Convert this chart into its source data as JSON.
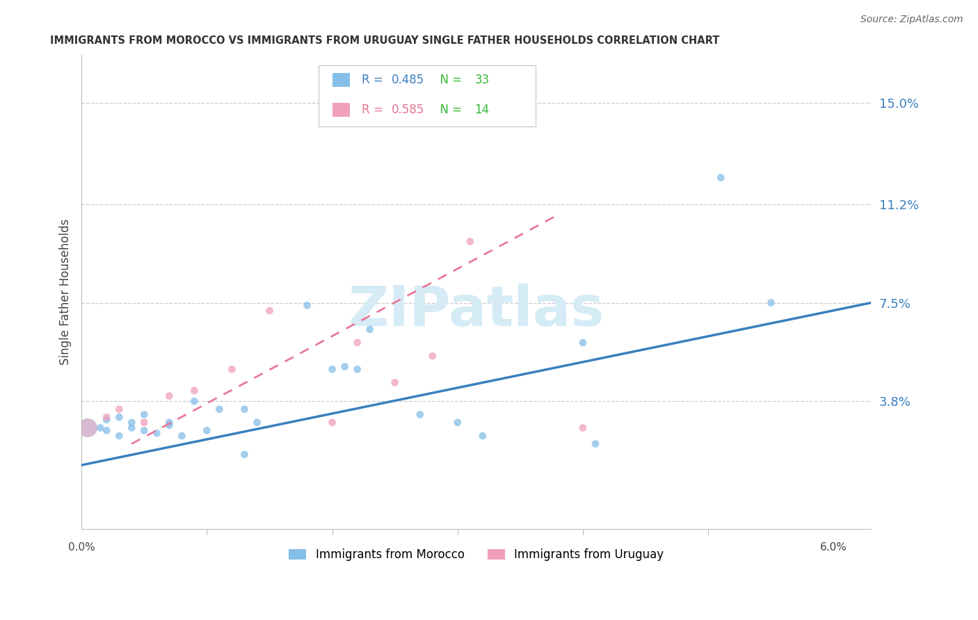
{
  "title": "IMMIGRANTS FROM MOROCCO VS IMMIGRANTS FROM URUGUAY SINGLE FATHER HOUSEHOLDS CORRELATION CHART",
  "source": "Source: ZipAtlas.com",
  "ylabel": "Single Father Households",
  "ytick_labels": [
    "15.0%",
    "11.2%",
    "7.5%",
    "3.8%"
  ],
  "ytick_values": [
    0.15,
    0.112,
    0.075,
    0.038
  ],
  "xlim": [
    0.0,
    0.063
  ],
  "ylim": [
    -0.01,
    0.168
  ],
  "morocco_R": 0.485,
  "morocco_N": 33,
  "uruguay_R": 0.585,
  "uruguay_N": 14,
  "morocco_color": "#85BEE8",
  "uruguay_color": "#F0A0B8",
  "morocco_line_color": "#3A7FBF",
  "uruguay_line_color": "#E87898",
  "watermark_color": "#D5EBF5",
  "morocco_scatter_x": [
    0.0015,
    0.002,
    0.002,
    0.003,
    0.003,
    0.004,
    0.004,
    0.005,
    0.005,
    0.006,
    0.007,
    0.007,
    0.008,
    0.009,
    0.01,
    0.011,
    0.013,
    0.013,
    0.014,
    0.018,
    0.02,
    0.021,
    0.022,
    0.023,
    0.027,
    0.03,
    0.032,
    0.04,
    0.041,
    0.051,
    0.055
  ],
  "morocco_scatter_y": [
    0.028,
    0.027,
    0.031,
    0.025,
    0.032,
    0.03,
    0.028,
    0.027,
    0.033,
    0.026,
    0.029,
    0.03,
    0.025,
    0.038,
    0.027,
    0.035,
    0.035,
    0.018,
    0.03,
    0.074,
    0.05,
    0.051,
    0.05,
    0.065,
    0.033,
    0.03,
    0.025,
    0.06,
    0.022,
    0.122,
    0.075
  ],
  "morocco_scatter_size": [
    60,
    60,
    60,
    60,
    60,
    60,
    60,
    60,
    60,
    60,
    60,
    60,
    60,
    60,
    60,
    60,
    60,
    60,
    60,
    60,
    60,
    60,
    60,
    60,
    60,
    60,
    60,
    60,
    60,
    60,
    60
  ],
  "morocco_big_x": [
    0.0005
  ],
  "morocco_big_y": [
    0.028
  ],
  "morocco_big_size": [
    380
  ],
  "uruguay_scatter_x": [
    0.002,
    0.003,
    0.005,
    0.007,
    0.009,
    0.012,
    0.015,
    0.02,
    0.022,
    0.025,
    0.028,
    0.031,
    0.04
  ],
  "uruguay_scatter_y": [
    0.032,
    0.035,
    0.03,
    0.04,
    0.042,
    0.05,
    0.072,
    0.03,
    0.06,
    0.045,
    0.055,
    0.098,
    0.028
  ],
  "uruguay_scatter_size": [
    60,
    60,
    60,
    60,
    60,
    60,
    60,
    60,
    60,
    60,
    60,
    60,
    60
  ],
  "uruguay_big_x": [
    0.0005
  ],
  "uruguay_big_y": [
    0.028
  ],
  "uruguay_big_size": [
    380
  ],
  "morocco_trend_x": [
    0.0,
    0.063
  ],
  "morocco_trend_y": [
    0.014,
    0.075
  ],
  "uruguay_trend_x": [
    0.004,
    0.038
  ],
  "uruguay_trend_y": [
    0.022,
    0.108
  ]
}
